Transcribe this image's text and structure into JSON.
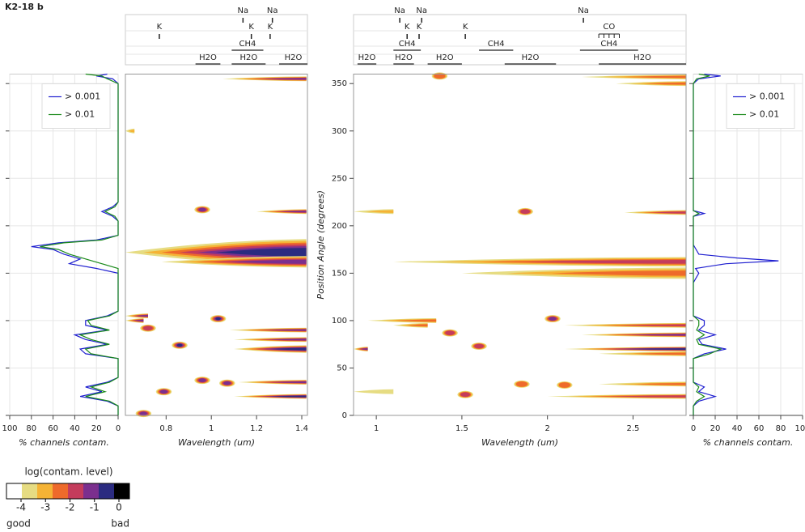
{
  "title": "K2-18 b",
  "colorbar": {
    "title": "log(contam. level)",
    "ticks": [
      -4,
      -3,
      -2,
      -1,
      0
    ],
    "low_label": "good",
    "high_label": "bad",
    "colors": [
      "#ffffff",
      "#e6dc82",
      "#f5b335",
      "#ee6a2b",
      "#c43c5c",
      "#7b2f8e",
      "#2b2b80",
      "#000000"
    ]
  },
  "chart_data": [
    {
      "type": "hist",
      "xlabel": "% channels contam.",
      "xlim": [
        100,
        0
      ],
      "xticks": [
        100,
        80,
        60,
        40,
        20,
        0
      ],
      "ylim": [
        0,
        360
      ],
      "yticks": [
        0,
        50,
        100,
        150,
        200,
        250,
        300,
        350
      ],
      "grid": true,
      "legend": "upper right",
      "position_angle": [
        0,
        10,
        15,
        20,
        25,
        30,
        35,
        40,
        60,
        65,
        70,
        75,
        80,
        85,
        90,
        95,
        100,
        105,
        110,
        150,
        155,
        160,
        165,
        170,
        175,
        178,
        182,
        185,
        190,
        200,
        205,
        210,
        215,
        220,
        225,
        300,
        350,
        355,
        358,
        360
      ],
      "series": [
        {
          "name": "> 0.001",
          "color": "#1f1fd0",
          "values": [
            0,
            0,
            10,
            35,
            15,
            30,
            10,
            0,
            0,
            30,
            35,
            10,
            30,
            40,
            10,
            30,
            30,
            10,
            0,
            0,
            20,
            45,
            35,
            50,
            60,
            80,
            55,
            20,
            0,
            0,
            0,
            5,
            15,
            5,
            0,
            0,
            0,
            5,
            20,
            10
          ]
        },
        {
          "name": "> 0.01",
          "color": "#1a8a1a",
          "values": [
            0,
            0,
            8,
            30,
            12,
            25,
            8,
            0,
            0,
            25,
            30,
            8,
            25,
            35,
            8,
            25,
            28,
            8,
            0,
            0,
            0,
            15,
            30,
            45,
            55,
            72,
            50,
            15,
            0,
            0,
            0,
            3,
            12,
            3,
            0,
            0,
            0,
            10,
            15,
            30
          ]
        }
      ]
    },
    {
      "type": "heatmap",
      "xlabel": "Wavelength (um)",
      "xlim": [
        0.62,
        1.425
      ],
      "xticks": [
        0.8,
        1,
        1.2,
        1.4
      ],
      "ylim": [
        0,
        360
      ],
      "features": [
        {
          "label": "Na",
          "x": 1.14
        },
        {
          "label": "Na",
          "x": 1.27
        },
        {
          "label": "K",
          "x": 0.77
        },
        {
          "label": "K",
          "x": 1.177
        },
        {
          "label": "K",
          "x": 1.26
        },
        {
          "label": "CH4",
          "range": [
            1.09,
            1.23
          ]
        },
        {
          "label": "H2O",
          "range": [
            0.93,
            1.04
          ]
        },
        {
          "label": "H2O",
          "range": [
            1.09,
            1.24
          ]
        },
        {
          "label": "H2O",
          "range": [
            1.3,
            1.425
          ]
        }
      ],
      "streaks": [
        {
          "pa": 355,
          "wl": [
            1.05,
            1.42
          ],
          "level": -1.5
        },
        {
          "pa": 215,
          "wl": [
            1.2,
            1.42
          ],
          "level": -1.5
        },
        {
          "pa": 172,
          "wl": [
            0.62,
            1.42
          ],
          "level": -0.8,
          "height": 14
        },
        {
          "pa": 162,
          "wl": [
            0.78,
            1.42
          ],
          "level": -1.2,
          "height": 6
        },
        {
          "pa": 105,
          "wl": [
            0.62,
            0.72
          ],
          "level": -1.5
        },
        {
          "pa": 100,
          "wl": [
            0.62,
            0.7
          ],
          "level": -1.5
        },
        {
          "pa": 90,
          "wl": [
            1.08,
            1.42
          ],
          "level": -1.2
        },
        {
          "pa": 80,
          "wl": [
            1.1,
            1.42
          ],
          "level": -1.5
        },
        {
          "pa": 70,
          "wl": [
            1.1,
            1.42
          ],
          "level": -0.8,
          "height": 4
        },
        {
          "pa": 35,
          "wl": [
            1.12,
            1.42
          ],
          "level": -1.5
        },
        {
          "pa": 20,
          "wl": [
            1.1,
            1.42
          ],
          "level": -1
        },
        {
          "pa": 300,
          "wl": [
            0.62,
            0.66
          ],
          "level": -3.5
        }
      ],
      "spots": [
        {
          "pa": 217,
          "wl": 0.96,
          "level": -1.5
        },
        {
          "pa": 102,
          "wl": 1.03,
          "level": -1
        },
        {
          "pa": 92,
          "wl": 0.72,
          "level": -2
        },
        {
          "pa": 74,
          "wl": 0.86,
          "level": -1
        },
        {
          "pa": 37,
          "wl": 0.96,
          "level": -1.5
        },
        {
          "pa": 34,
          "wl": 1.07,
          "level": -1.5
        },
        {
          "pa": 25,
          "wl": 0.79,
          "level": -1.5
        },
        {
          "pa": 2,
          "wl": 0.7,
          "level": -1.5
        }
      ]
    },
    {
      "type": "heatmap",
      "xlabel": "Wavelength (um)",
      "ylabel": "Position Angle (degrees)",
      "xlim": [
        0.867,
        2.81
      ],
      "xticks": [
        1,
        1.5,
        2,
        2.5
      ],
      "ylim": [
        0,
        360
      ],
      "yticks": [
        0,
        50,
        100,
        150,
        200,
        250,
        300,
        350
      ],
      "features": [
        {
          "label": "Na",
          "x": 1.137
        },
        {
          "label": "Na",
          "x": 1.265
        },
        {
          "label": "Na",
          "x": 2.21
        },
        {
          "label": "K",
          "x": 1.18
        },
        {
          "label": "K",
          "x": 1.25
        },
        {
          "label": "K",
          "x": 1.52
        },
        {
          "label": "CO",
          "range": [
            2.3,
            2.42
          ]
        },
        {
          "label": "CH4",
          "range": [
            1.1,
            1.26
          ]
        },
        {
          "label": "CH4",
          "range": [
            1.6,
            1.8
          ]
        },
        {
          "label": "CH4",
          "range": [
            2.19,
            2.53
          ]
        },
        {
          "label": "H2O",
          "range": [
            0.89,
            1.0
          ]
        },
        {
          "label": "H2O",
          "range": [
            1.1,
            1.22
          ]
        },
        {
          "label": "H2O",
          "range": [
            1.3,
            1.5
          ]
        },
        {
          "label": "H2O",
          "range": [
            1.75,
            2.05
          ]
        },
        {
          "label": "H2O",
          "range": [
            2.3,
            2.81
          ]
        }
      ],
      "streaks": [
        {
          "pa": 357,
          "wl": [
            2.2,
            2.81
          ],
          "level": -2.5
        },
        {
          "pa": 350,
          "wl": [
            2.4,
            2.81
          ],
          "level": -3
        },
        {
          "pa": 215,
          "wl": [
            0.867,
            1.1
          ],
          "level": -3.5
        },
        {
          "pa": 214,
          "wl": [
            2.45,
            2.81
          ],
          "level": -2
        },
        {
          "pa": 162,
          "wl": [
            1.1,
            2.81
          ],
          "level": -2.3,
          "height": 5
        },
        {
          "pa": 150,
          "wl": [
            1.5,
            2.81
          ],
          "level": -2.8,
          "height": 6
        },
        {
          "pa": 100,
          "wl": [
            0.95,
            1.35
          ],
          "level": -2.5
        },
        {
          "pa": 95,
          "wl": [
            1.1,
            1.3
          ],
          "level": -2.5
        },
        {
          "pa": 95,
          "wl": [
            2.1,
            2.81
          ],
          "level": -2
        },
        {
          "pa": 85,
          "wl": [
            2.2,
            2.81
          ],
          "level": -1.5
        },
        {
          "pa": 70,
          "wl": [
            2.1,
            2.81
          ],
          "level": -1
        },
        {
          "pa": 65,
          "wl": [
            2.3,
            2.81
          ],
          "level": -2.5
        },
        {
          "pa": 70,
          "wl": [
            0.867,
            0.95
          ],
          "level": -1.5
        },
        {
          "pa": 33,
          "wl": [
            2.3,
            2.81
          ],
          "level": -2.5
        },
        {
          "pa": 25,
          "wl": [
            0.867,
            1.1
          ],
          "level": -4
        },
        {
          "pa": 20,
          "wl": [
            2.0,
            2.81
          ],
          "level": -2
        }
      ],
      "spots": [
        {
          "pa": 358,
          "wl": 1.37,
          "level": -3
        },
        {
          "pa": 215,
          "wl": 1.87,
          "level": -2
        },
        {
          "pa": 102,
          "wl": 2.03,
          "level": -1.5
        },
        {
          "pa": 87,
          "wl": 1.43,
          "level": -2
        },
        {
          "pa": 73,
          "wl": 1.6,
          "level": -2
        },
        {
          "pa": 33,
          "wl": 1.85,
          "level": -2.5
        },
        {
          "pa": 32,
          "wl": 2.1,
          "level": -2.5
        },
        {
          "pa": 22,
          "wl": 1.52,
          "level": -2
        }
      ]
    },
    {
      "type": "hist",
      "xlabel": "% channels contam.",
      "xlim": [
        0,
        100
      ],
      "xticks": [
        0,
        20,
        40,
        60,
        80,
        100
      ],
      "ylim": [
        0,
        360
      ],
      "yticks": [
        0,
        50,
        100,
        150,
        200,
        250,
        300,
        350
      ],
      "grid": true,
      "legend": "upper right",
      "position_angle": [
        0,
        10,
        15,
        20,
        25,
        30,
        35,
        60,
        65,
        70,
        75,
        80,
        85,
        90,
        95,
        100,
        105,
        140,
        150,
        155,
        160,
        163,
        166,
        170,
        180,
        210,
        213,
        216,
        350,
        355,
        358,
        360
      ],
      "series": [
        {
          "name": "> 0.001",
          "color": "#1f1fd0",
          "values": [
            0,
            0,
            5,
            20,
            5,
            10,
            0,
            0,
            10,
            30,
            8,
            5,
            20,
            5,
            10,
            10,
            0,
            0,
            5,
            2,
            30,
            78,
            40,
            5,
            0,
            0,
            10,
            0,
            0,
            5,
            25,
            10
          ]
        },
        {
          "name": "> 0.01",
          "color": "#1a8a1a",
          "values": [
            0,
            0,
            3,
            10,
            3,
            5,
            0,
            0,
            15,
            25,
            5,
            3,
            10,
            3,
            5,
            5,
            0,
            0,
            0,
            0,
            0,
            0,
            0,
            0,
            0,
            0,
            5,
            0,
            0,
            3,
            15,
            5
          ]
        }
      ]
    }
  ]
}
